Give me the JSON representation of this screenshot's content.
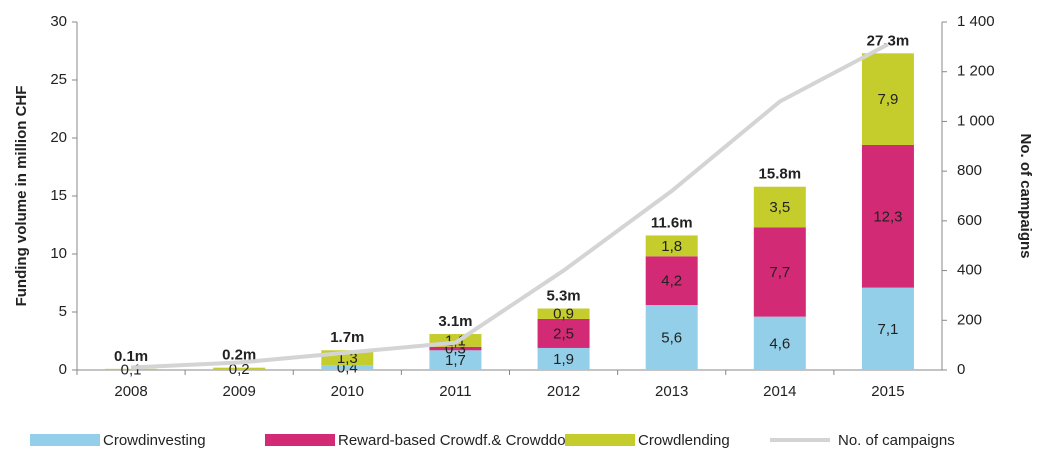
{
  "chart_data": {
    "type": "bar",
    "categories": [
      "2008",
      "2009",
      "2010",
      "2011",
      "2012",
      "2013",
      "2014",
      "2015"
    ],
    "series": [
      {
        "name": "Crowdinvesting",
        "color": "#93cfe8",
        "values": [
          null,
          null,
          0.4,
          1.7,
          1.9,
          5.6,
          4.6,
          7.1
        ],
        "value_labels": [
          null,
          null,
          "0,4",
          "1,7",
          "1,9",
          "5,6",
          "4,6",
          "7,1"
        ]
      },
      {
        "name": "Reward-based Crowdf.& Crowddon.",
        "color": "#d22a75",
        "values": [
          null,
          null,
          null,
          0.3,
          2.5,
          4.2,
          7.7,
          12.3
        ],
        "value_labels": [
          null,
          null,
          null,
          "0,3",
          "2,5",
          "4,2",
          "7,7",
          "12,3"
        ]
      },
      {
        "name": "Crowdlending",
        "color": "#c5cd2c",
        "values": [
          0.1,
          0.2,
          1.3,
          1.1,
          0.9,
          1.8,
          3.5,
          7.9
        ],
        "value_labels": [
          "0,1",
          "0,2",
          "1,3",
          "1,1",
          "0,9",
          "1,8",
          "3,5",
          "7,9"
        ]
      },
      {
        "name": "No. of campaigns",
        "color": "#d4d4d4",
        "axis": "y2",
        "type": "line",
        "values": [
          10,
          30,
          70,
          110,
          400,
          720,
          1080,
          1310
        ]
      }
    ],
    "totals": [
      0.1,
      0.2,
      1.7,
      3.1,
      5.3,
      11.6,
      15.8,
      27.3
    ],
    "total_labels": [
      "0.1m",
      "0.2m",
      "1.7m",
      "3.1m",
      "5.3m",
      "11.6m",
      "15.8m",
      "27.3m"
    ],
    "y_label": "Funding volume in million CHF",
    "y2_label": "No. of campaigns",
    "ylim": [
      0,
      30
    ],
    "yticks": [
      0,
      5,
      10,
      15,
      20,
      25,
      30
    ],
    "y2lim": [
      0,
      1400
    ],
    "y2ticks": [
      0,
      200,
      400,
      600,
      800,
      {
        "value": 1000,
        "label": "1 000"
      },
      {
        "value": 1200,
        "label": "1 200"
      },
      {
        "value": 1400,
        "label": "1 400"
      }
    ],
    "legend": "bottom"
  }
}
